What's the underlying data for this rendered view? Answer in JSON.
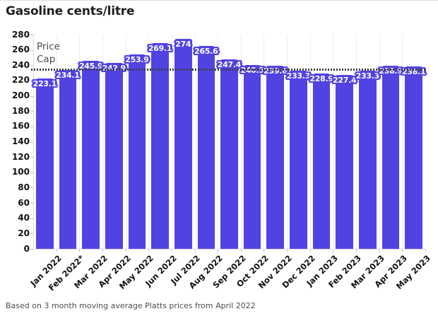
{
  "header": {
    "title": "Gasoline cents/litre"
  },
  "footer": {
    "note": "Based on 3 month moving average Platts prices from April 2022"
  },
  "colors": {
    "bar": "#5143e1",
    "bar_label_text": "#ffffff",
    "cap_line": "#3d3d3d",
    "axis_text": "#111111",
    "cap_label_text": "#4a4a4a"
  },
  "chart_data": {
    "type": "bar",
    "title": "Gasoline cents/litre",
    "xlabel": "",
    "ylabel": "",
    "categories": [
      "Jan 2022",
      "Feb 2022*",
      "Mar 2022",
      "Apr 2022",
      "May 2022",
      "Jun 2022",
      "Jul 2022",
      "Aug 2022",
      "Sep 2022",
      "Oct 2022",
      "Nov 2022",
      "Dec 2022",
      "Jan 2023",
      "Feb 2023",
      "Mar 2023",
      "Apr 2023",
      "May 2023"
    ],
    "values": [
      223.1,
      234.1,
      245.9,
      242.9,
      253.9,
      269.1,
      274,
      265.6,
      247.4,
      240.5,
      239.6,
      233.3,
      228.9,
      227.4,
      233.3,
      238.9,
      238.1
    ],
    "ylim": [
      0,
      280
    ],
    "ytick_step": 20,
    "grid": "vertical-faint",
    "legend": "none",
    "value_labels": "on-bar-top",
    "annotations": [
      {
        "name": "price-cap",
        "label": "Price Cap",
        "value": 235,
        "style": "dotted-horizontal-line"
      }
    ]
  }
}
